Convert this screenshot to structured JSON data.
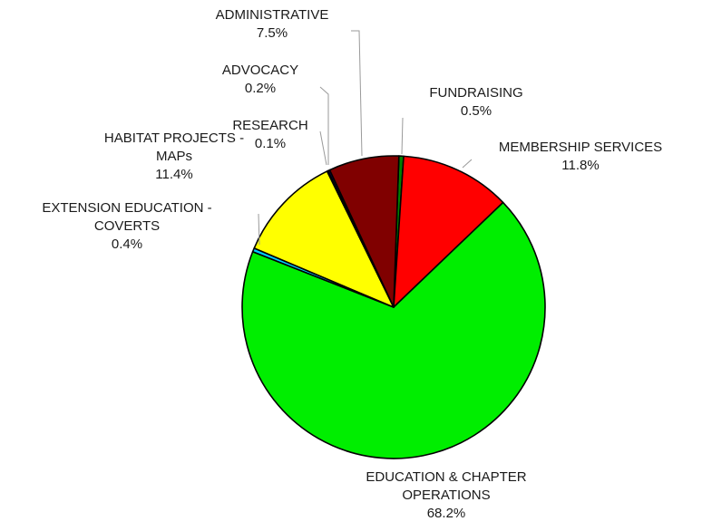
{
  "chart_data": {
    "type": "pie",
    "title": "",
    "slices": [
      {
        "label": "FUNDRAISING",
        "value": 0.5,
        "value_label": "0.5%",
        "color": "#008000"
      },
      {
        "label": "MEMBERSHIP SERVICES",
        "value": 11.8,
        "value_label": "11.8%",
        "color": "#ff0000"
      },
      {
        "label": "EDUCATION & CHAPTER OPERATIONS",
        "value": 68.2,
        "value_label": "68.2%",
        "color": "#00ee00"
      },
      {
        "label": "EXTENSION EDUCATION - COVERTS",
        "value": 0.4,
        "value_label": "0.4%",
        "color": "#00ccff"
      },
      {
        "label": "HABITAT PROJECTS - MAPs",
        "value": 11.4,
        "value_label": "11.4%",
        "color": "#ffff00"
      },
      {
        "label": "RESEARCH",
        "value": 0.1,
        "value_label": "0.1%",
        "color": "#ff00ff"
      },
      {
        "label": "ADVOCACY",
        "value": 0.2,
        "value_label": "0.2%",
        "color": "#000080"
      },
      {
        "label": "ADMINISTRATIVE",
        "value": 7.5,
        "value_label": "7.5%",
        "color": "#800000"
      }
    ],
    "legend": "none",
    "label_style": "outside labels with leader lines"
  }
}
